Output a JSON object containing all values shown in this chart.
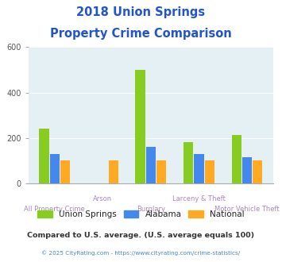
{
  "title_line1": "2018 Union Springs",
  "title_line2": "Property Crime Comparison",
  "categories": [
    "All Property Crime",
    "Arson",
    "Burglary",
    "Larceny & Theft",
    "Motor Vehicle Theft"
  ],
  "series": {
    "Union Springs": [
      240,
      0,
      500,
      183,
      215
    ],
    "Alabama": [
      130,
      0,
      160,
      128,
      115
    ],
    "National": [
      100,
      100,
      100,
      100,
      100
    ]
  },
  "colors": {
    "Union Springs": "#88cc22",
    "Alabama": "#4488ee",
    "National": "#ffaa22"
  },
  "ylim": [
    0,
    600
  ],
  "yticks": [
    0,
    200,
    400,
    600
  ],
  "background_color": "#ffffff",
  "plot_bg": "#e4f0f4",
  "title_color": "#2255cc",
  "xlabel_color": "#aa88bb",
  "legend_text_color": "#222222",
  "footnote1": "Compared to U.S. average. (U.S. average equals 100)",
  "footnote2": "© 2025 CityRating.com - https://www.cityrating.com/crime-statistics/",
  "footnote1_color": "#333333",
  "footnote2_color": "#4488cc",
  "bar_width": 0.22
}
